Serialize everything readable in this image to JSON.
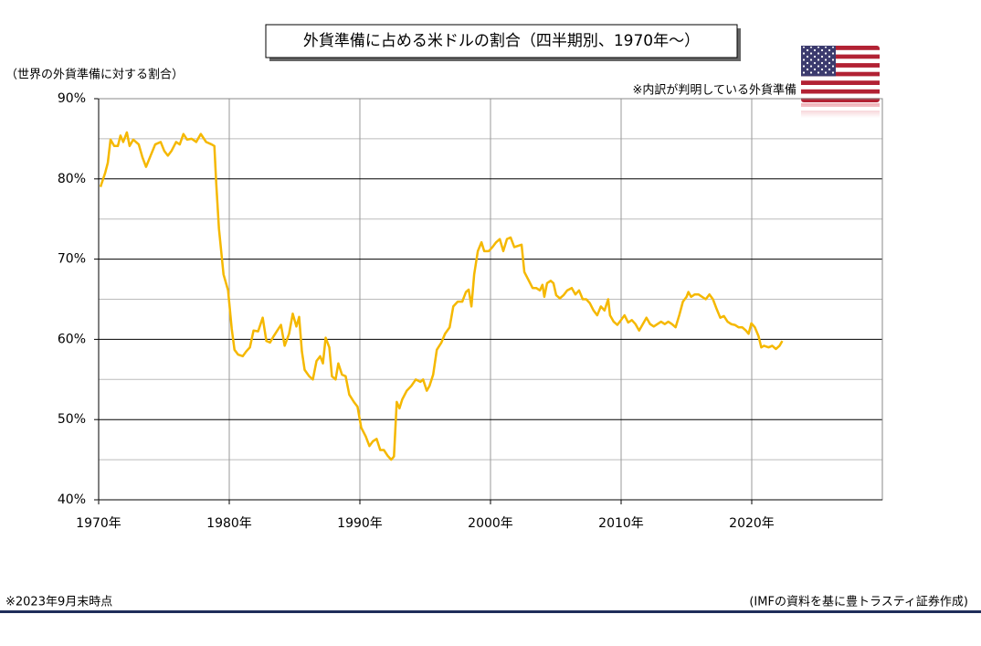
{
  "chart_data": {
    "type": "line",
    "title": "外貨準備に占める米ドルの割合（四半期別、1970年～）",
    "y_label": "（世界の外貨準備に対する割合）",
    "note": "※内訳が判明している外貨準備",
    "footnote": "※2023年9月末時点",
    "source": "(IMFの資料を基に豊トラスティ証券作成)",
    "color": "#f5b800",
    "grid": true,
    "xlim": [
      1970,
      2030
    ],
    "xticks": [
      {
        "value": 1970,
        "label": "1970年"
      },
      {
        "value": 1980,
        "label": "1980年"
      },
      {
        "value": 1990,
        "label": "1990年"
      },
      {
        "value": 2000,
        "label": "2000年"
      },
      {
        "value": 2010,
        "label": "2010年"
      },
      {
        "value": 2020,
        "label": "2020年"
      }
    ],
    "ylim": [
      40,
      90
    ],
    "yticks": [
      {
        "value": 40,
        "label": "40%"
      },
      {
        "value": 50,
        "label": "50%"
      },
      {
        "value": 60,
        "label": "60%"
      },
      {
        "value": 70,
        "label": "70%"
      },
      {
        "value": 80,
        "label": "80%"
      },
      {
        "value": 90,
        "label": "90%"
      }
    ],
    "minor_yticks": [
      45,
      55,
      65,
      75,
      85
    ],
    "x": [
      1970.14,
      1970.49,
      1970.7,
      1970.91,
      1971.19,
      1971.47,
      1971.67,
      1971.88,
      1972.16,
      1972.37,
      1972.65,
      1973.07,
      1973.35,
      1973.63,
      1973.98,
      1974.33,
      1974.75,
      1975.02,
      1975.3,
      1975.58,
      1975.93,
      1976.21,
      1976.49,
      1976.77,
      1977.12,
      1977.47,
      1977.82,
      1978.23,
      1978.65,
      1978.86,
      1979.0,
      1979.21,
      1979.56,
      1979.91,
      1980.19,
      1980.4,
      1980.68,
      1981.03,
      1981.3,
      1981.58,
      1981.86,
      1982.21,
      1982.56,
      1982.84,
      1983.12,
      1983.4,
      1983.68,
      1983.96,
      1984.24,
      1984.58,
      1984.86,
      1985.14,
      1985.35,
      1985.56,
      1985.77,
      1986.12,
      1986.4,
      1986.68,
      1986.96,
      1987.17,
      1987.38,
      1987.66,
      1987.86,
      1988.14,
      1988.35,
      1988.63,
      1988.91,
      1989.19,
      1989.54,
      1989.82,
      1990.1,
      1990.45,
      1990.73,
      1991.0,
      1991.28,
      1991.56,
      1991.84,
      1992.12,
      1992.4,
      1992.61,
      1992.82,
      1993.03,
      1993.24,
      1993.59,
      1993.94,
      1994.28,
      1994.63,
      1994.84,
      1995.12,
      1995.33,
      1995.61,
      1995.89,
      1996.24,
      1996.52,
      1996.87,
      1997.15,
      1997.49,
      1997.84,
      1998.12,
      1998.33,
      1998.54,
      1998.75,
      1999.03,
      1999.31,
      1999.52,
      1999.87,
      2000.15,
      2000.43,
      2000.71,
      2000.98,
      2001.26,
      2001.54,
      2001.82,
      2002.38,
      2002.59,
      2002.94,
      2003.22,
      2003.5,
      2003.78,
      2003.98,
      2004.12,
      2004.33,
      2004.61,
      2004.82,
      2005.03,
      2005.31,
      2005.59,
      2005.87,
      2006.22,
      2006.5,
      2006.78,
      2007.06,
      2007.33,
      2007.61,
      2007.89,
      2008.17,
      2008.45,
      2008.73,
      2009.01,
      2009.15,
      2009.43,
      2009.71,
      2009.99,
      2010.26,
      2010.54,
      2010.82,
      2011.1,
      2011.38,
      2011.66,
      2011.94,
      2012.22,
      2012.5,
      2012.78,
      2013.06,
      2013.34,
      2013.61,
      2013.89,
      2014.17,
      2014.45,
      2014.73,
      2015.01,
      2015.15,
      2015.36,
      2015.64,
      2015.92,
      2016.2,
      2016.48,
      2016.76,
      2017.03,
      2017.31,
      2017.59,
      2017.87,
      2018.15,
      2018.43,
      2018.71,
      2018.99,
      2019.27,
      2019.55,
      2019.76,
      2019.97,
      2020.24,
      2020.52,
      2020.73,
      2020.94,
      2021.29,
      2021.57,
      2021.85,
      2022.13,
      2022.34
    ],
    "values": [
      79.0,
      80.7,
      82.0,
      84.9,
      84.1,
      84.1,
      85.4,
      84.6,
      85.8,
      84.1,
      84.9,
      84.3,
      82.7,
      81.5,
      82.9,
      84.3,
      84.6,
      83.5,
      82.9,
      83.5,
      84.6,
      84.3,
      85.6,
      84.9,
      85.0,
      84.6,
      85.6,
      84.6,
      84.3,
      84.1,
      79.5,
      73.8,
      68.1,
      66.1,
      61.3,
      58.7,
      58.1,
      57.9,
      58.5,
      59.0,
      61.1,
      61.0,
      62.7,
      59.8,
      59.6,
      60.4,
      61.1,
      61.8,
      59.2,
      60.7,
      63.2,
      61.6,
      62.8,
      58.5,
      56.2,
      55.4,
      55.0,
      57.3,
      57.9,
      57.0,
      60.2,
      59.0,
      55.4,
      55.0,
      57.0,
      55.6,
      55.4,
      53.1,
      52.2,
      51.6,
      49.0,
      47.9,
      46.7,
      47.3,
      47.6,
      46.2,
      46.2,
      45.5,
      45.0,
      45.4,
      52.2,
      51.4,
      52.5,
      53.6,
      54.2,
      55.0,
      54.7,
      55.0,
      53.6,
      54.2,
      55.6,
      58.7,
      59.6,
      60.7,
      61.5,
      64.1,
      64.7,
      64.7,
      65.9,
      66.2,
      64.1,
      68.1,
      71.0,
      72.1,
      71.0,
      71.0,
      71.5,
      72.1,
      72.5,
      71.0,
      72.5,
      72.7,
      71.5,
      71.8,
      68.4,
      67.3,
      66.4,
      66.4,
      66.1,
      66.8,
      65.3,
      67.0,
      67.3,
      67.0,
      65.5,
      65.1,
      65.5,
      66.1,
      66.4,
      65.6,
      66.1,
      65.0,
      65.0,
      64.5,
      63.6,
      63.0,
      64.1,
      63.6,
      65.0,
      63.0,
      62.2,
      61.8,
      62.4,
      63.0,
      62.1,
      62.4,
      61.9,
      61.1,
      61.9,
      62.7,
      61.9,
      61.6,
      61.9,
      62.2,
      61.9,
      62.2,
      61.9,
      61.5,
      63.0,
      64.7,
      65.3,
      65.9,
      65.3,
      65.6,
      65.6,
      65.3,
      65.0,
      65.6,
      65.0,
      63.8,
      62.7,
      62.9,
      62.2,
      61.9,
      61.8,
      61.5,
      61.5,
      61.1,
      60.7,
      62.0,
      61.5,
      60.4,
      59.0,
      59.2,
      59.0,
      59.2,
      58.8,
      59.2,
      59.8
    ]
  }
}
